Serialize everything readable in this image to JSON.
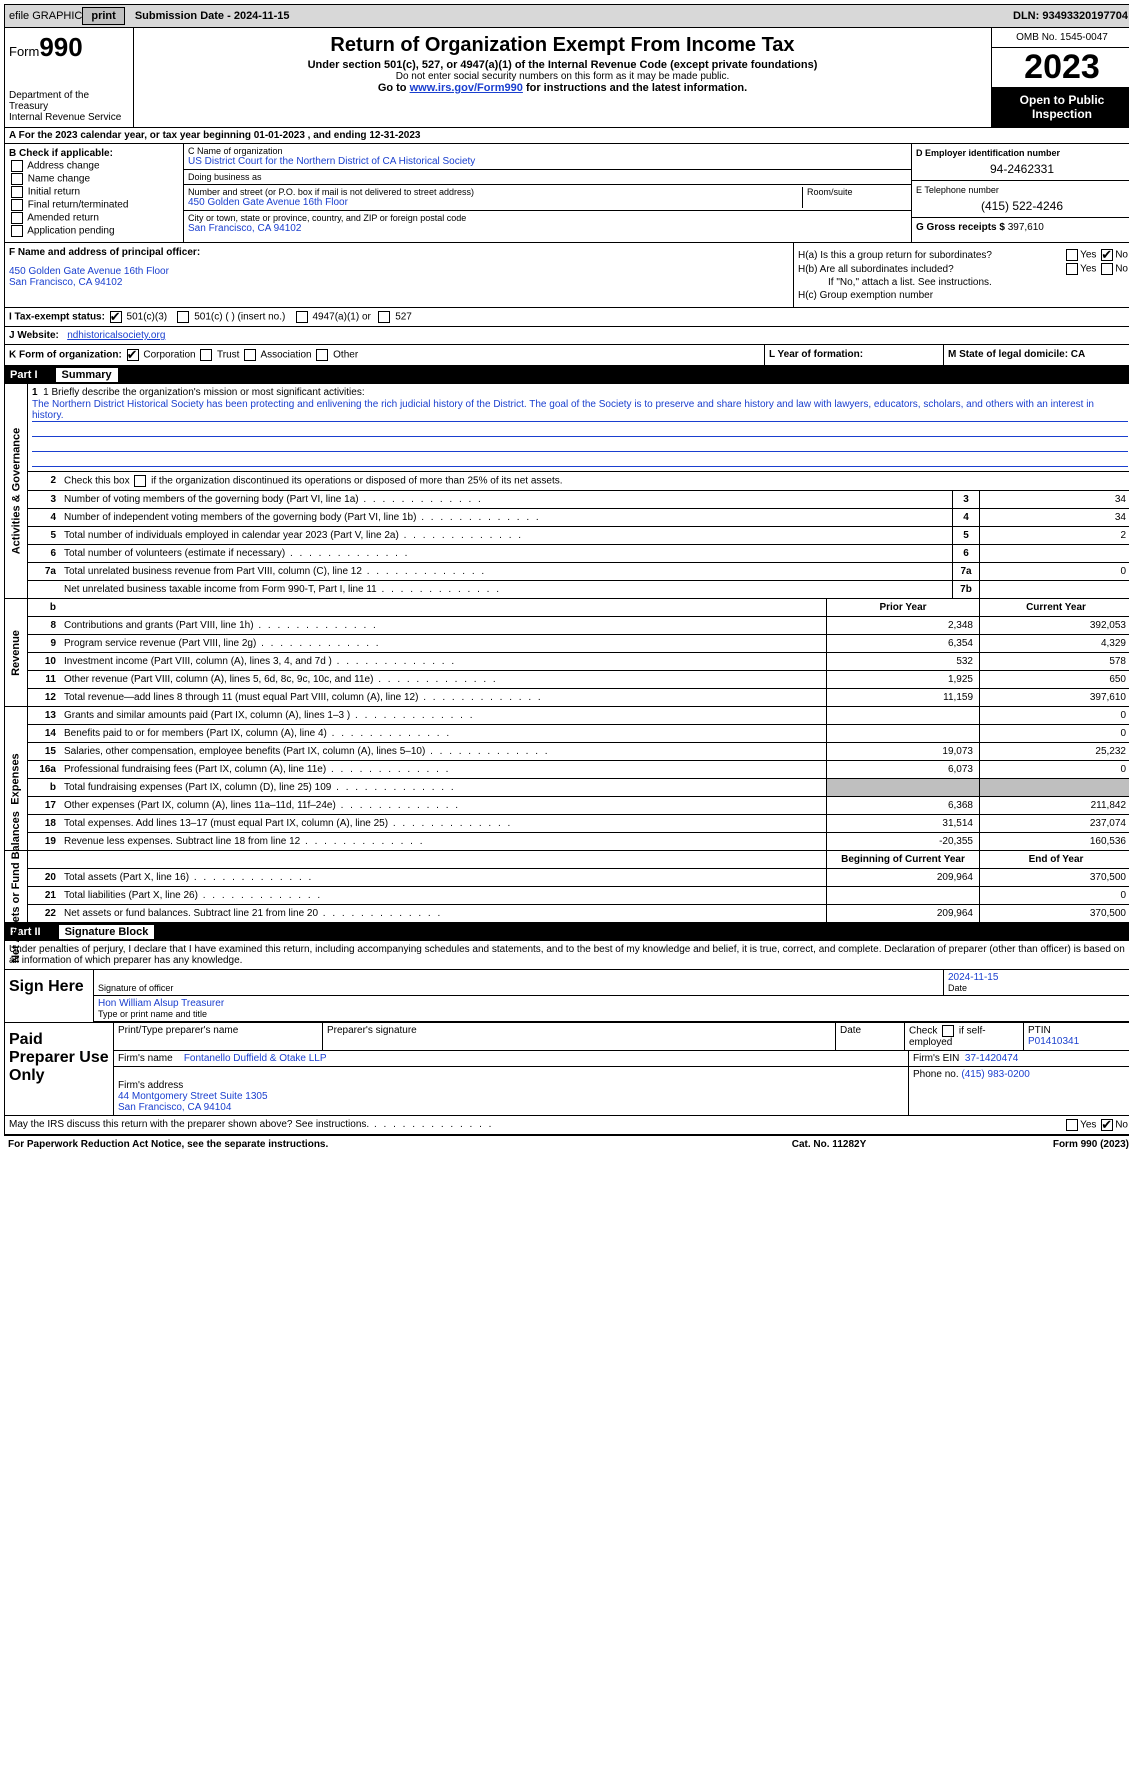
{
  "topbar": {
    "efile": "efile GRAPHIC",
    "print": "print",
    "submission": "Submission Date - 2024-11-15",
    "dln": "DLN: 93493320197704"
  },
  "header": {
    "form_label": "Form",
    "form_num": "990",
    "dept": "Department of the Treasury\nInternal Revenue Service",
    "title": "Return of Organization Exempt From Income Tax",
    "sub1": "Under section 501(c), 527, or 4947(a)(1) of the Internal Revenue Code (except private foundations)",
    "sub2": "Do not enter social security numbers on this form as it may be made public.",
    "sub3_pre": "Go to ",
    "sub3_link": "www.irs.gov/Form990",
    "sub3_post": " for instructions and the latest information.",
    "omb": "OMB No. 1545-0047",
    "year": "2023",
    "open": "Open to Public Inspection"
  },
  "rowA": "A For the 2023 calendar year, or tax year beginning 01-01-2023    , and ending 12-31-2023",
  "B": {
    "label": "B Check if applicable:",
    "opts": [
      "Address change",
      "Name change",
      "Initial return",
      "Final return/terminated",
      "Amended return",
      "Application pending"
    ]
  },
  "C": {
    "name_lbl": "C Name of organization",
    "name": "US District Court for the Northern District of CA Historical Society",
    "dba_lbl": "Doing business as",
    "dba": "",
    "street_lbl": "Number and street (or P.O. box if mail is not delivered to street address)",
    "street": "450 Golden Gate Avenue 16th Floor",
    "suite_lbl": "Room/suite",
    "city_lbl": "City or town, state or province, country, and ZIP or foreign postal code",
    "city": "San Francisco, CA  94102"
  },
  "D": {
    "ein_lbl": "D Employer identification number",
    "ein": "94-2462331",
    "tel_lbl": "E Telephone number",
    "tel": "(415) 522-4246",
    "gross_lbl": "G Gross receipts $",
    "gross": "397,610"
  },
  "F": {
    "lbl": "F  Name and address of principal officer:",
    "addr1": "450 Golden Gate Avenue 16th Floor",
    "addr2": "San Francisco, CA  94102"
  },
  "H": {
    "a_lbl": "H(a)  Is this a group return for subordinates?",
    "b_lbl": "H(b)  Are all subordinates included?",
    "b_note": "If \"No,\" attach a list. See instructions.",
    "c_lbl": "H(c)  Group exemption number"
  },
  "I": {
    "lbl": "I    Tax-exempt status:",
    "o1": "501(c)(3)",
    "o2": "501(c) (  ) (insert no.)",
    "o3": "4947(a)(1) or",
    "o4": "527"
  },
  "J": {
    "lbl": "J    Website:",
    "val": "ndhistoricalsociety.org"
  },
  "K": {
    "lbl": "K Form of organization:",
    "o1": "Corporation",
    "o2": "Trust",
    "o3": "Association",
    "o4": "Other",
    "L_lbl": "L Year of formation:",
    "M_lbl": "M State of legal domicile: CA"
  },
  "part1": {
    "pt": "Part I",
    "tt": "Summary"
  },
  "mission": {
    "lbl": "1   Briefly describe the organization's mission or most significant activities:",
    "text": "The Northern District Historical Society has been protecting and enlivening the rich judicial history of the District. The goal of the Society is to preserve and share history and law with lawyers, educators, scholars, and others with an interest in history."
  },
  "line2": "Check this box      if the organization discontinued its operations or disposed of more than 25% of its net assets.",
  "vtabs": {
    "ag": "Activities & Governance",
    "rev": "Revenue",
    "exp": "Expenses",
    "na": "Net Assets or Fund Balances"
  },
  "rows_ag": [
    {
      "n": "3",
      "d": "Number of voting members of the governing body (Part VI, line 1a)",
      "c": "3",
      "v": "34"
    },
    {
      "n": "4",
      "d": "Number of independent voting members of the governing body (Part VI, line 1b)",
      "c": "4",
      "v": "34"
    },
    {
      "n": "5",
      "d": "Total number of individuals employed in calendar year 2023 (Part V, line 2a)",
      "c": "5",
      "v": "2"
    },
    {
      "n": "6",
      "d": "Total number of volunteers (estimate if necessary)",
      "c": "6",
      "v": ""
    },
    {
      "n": "7a",
      "d": "Total unrelated business revenue from Part VIII, column (C), line 12",
      "c": "7a",
      "v": "0"
    },
    {
      "n": "",
      "d": "Net unrelated business taxable income from Form 990-T, Part I, line 11",
      "c": "7b",
      "v": ""
    }
  ],
  "hdr_py": "Prior Year",
  "hdr_cy": "Current Year",
  "rows_rev": [
    {
      "n": "8",
      "d": "Contributions and grants (Part VIII, line 1h)",
      "py": "2,348",
      "cy": "392,053"
    },
    {
      "n": "9",
      "d": "Program service revenue (Part VIII, line 2g)",
      "py": "6,354",
      "cy": "4,329"
    },
    {
      "n": "10",
      "d": "Investment income (Part VIII, column (A), lines 3, 4, and 7d )",
      "py": "532",
      "cy": "578"
    },
    {
      "n": "11",
      "d": "Other revenue (Part VIII, column (A), lines 5, 6d, 8c, 9c, 10c, and 11e)",
      "py": "1,925",
      "cy": "650"
    },
    {
      "n": "12",
      "d": "Total revenue—add lines 8 through 11 (must equal Part VIII, column (A), line 12)",
      "py": "11,159",
      "cy": "397,610"
    }
  ],
  "rows_exp": [
    {
      "n": "13",
      "d": "Grants and similar amounts paid (Part IX, column (A), lines 1–3 )",
      "py": "",
      "cy": "0"
    },
    {
      "n": "14",
      "d": "Benefits paid to or for members (Part IX, column (A), line 4)",
      "py": "",
      "cy": "0"
    },
    {
      "n": "15",
      "d": "Salaries, other compensation, employee benefits (Part IX, column (A), lines 5–10)",
      "py": "19,073",
      "cy": "25,232"
    },
    {
      "n": "16a",
      "d": "Professional fundraising fees (Part IX, column (A), line 11e)",
      "py": "6,073",
      "cy": "0"
    },
    {
      "n": "b",
      "d": "Total fundraising expenses (Part IX, column (D), line 25) 109",
      "py": "grey",
      "cy": "grey"
    },
    {
      "n": "17",
      "d": "Other expenses (Part IX, column (A), lines 11a–11d, 11f–24e)",
      "py": "6,368",
      "cy": "211,842"
    },
    {
      "n": "18",
      "d": "Total expenses. Add lines 13–17 (must equal Part IX, column (A), line 25)",
      "py": "31,514",
      "cy": "237,074"
    },
    {
      "n": "19",
      "d": "Revenue less expenses. Subtract line 18 from line 12",
      "py": "-20,355",
      "cy": "160,536"
    }
  ],
  "hdr_boy": "Beginning of Current Year",
  "hdr_eoy": "End of Year",
  "rows_na": [
    {
      "n": "20",
      "d": "Total assets (Part X, line 16)",
      "py": "209,964",
      "cy": "370,500"
    },
    {
      "n": "21",
      "d": "Total liabilities (Part X, line 26)",
      "py": "",
      "cy": "0"
    },
    {
      "n": "22",
      "d": "Net assets or fund balances. Subtract line 21 from line 20",
      "py": "209,964",
      "cy": "370,500"
    }
  ],
  "part2": {
    "pt": "Part II",
    "tt": "Signature Block"
  },
  "sig": {
    "text": "Under penalties of perjury, I declare that I have examined this return, including accompanying schedules and statements, and to the best of my knowledge and belief, it is true, correct, and complete. Declaration of preparer (other than officer) is based on all information of which preparer has any knowledge.",
    "sign_here": "Sign Here",
    "sig_lbl": "Signature of officer",
    "date": "2024-11-15",
    "date_lbl": "Date",
    "name": "Hon William Alsup  Treasurer",
    "name_lbl": "Type or print name and title"
  },
  "prep": {
    "title": "Paid Preparer Use Only",
    "pn_lbl": "Print/Type preparer's name",
    "ps_lbl": "Preparer's signature",
    "dt_lbl": "Date",
    "chk_lbl": "Check       if self-employed",
    "ptin_lbl": "PTIN",
    "ptin": "P01410341",
    "firm_name_lbl": "Firm's name",
    "firm_name": "Fontanello Duffield & Otake LLP",
    "firm_ein_lbl": "Firm's EIN",
    "firm_ein": "37-1420474",
    "firm_addr_lbl": "Firm's address",
    "firm_addr": "44 Montgomery Street Suite 1305\nSan Francisco, CA  94104",
    "phone_lbl": "Phone no.",
    "phone": "(415) 983-0200"
  },
  "may_irs": "May the IRS discuss this return with the preparer shown above? See instructions.",
  "footer": {
    "f1": "For Paperwork Reduction Act Notice, see the separate instructions.",
    "f2": "Cat. No. 11282Y",
    "f3": "Form 990 (2023)"
  },
  "colors": {
    "link": "#1a3fcf",
    "grey": "#bfbfbf",
    "topbar": "#d8d8d8"
  }
}
